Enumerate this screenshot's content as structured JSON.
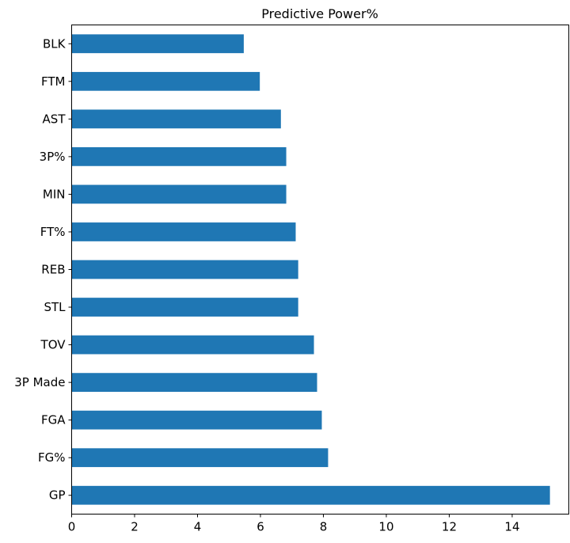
{
  "chart_data": {
    "type": "bar",
    "orientation": "horizontal",
    "title": "Predictive Power%",
    "xlabel": "",
    "ylabel": "",
    "categories": [
      "GP",
      "FG%",
      "FGA",
      "3P Made",
      "TOV",
      "STL",
      "REB",
      "FT%",
      "MIN",
      "3P%",
      "AST",
      "FTM",
      "BLK"
    ],
    "values": [
      15.2,
      8.15,
      7.95,
      7.8,
      7.7,
      7.2,
      7.2,
      7.12,
      6.82,
      6.82,
      6.65,
      5.98,
      5.47
    ],
    "xlim": [
      0,
      15.8
    ],
    "xticks": [
      0,
      2,
      4,
      6,
      8,
      10,
      12,
      14
    ],
    "bar_color": "#1f77b4",
    "grid": false,
    "legend": "none"
  }
}
